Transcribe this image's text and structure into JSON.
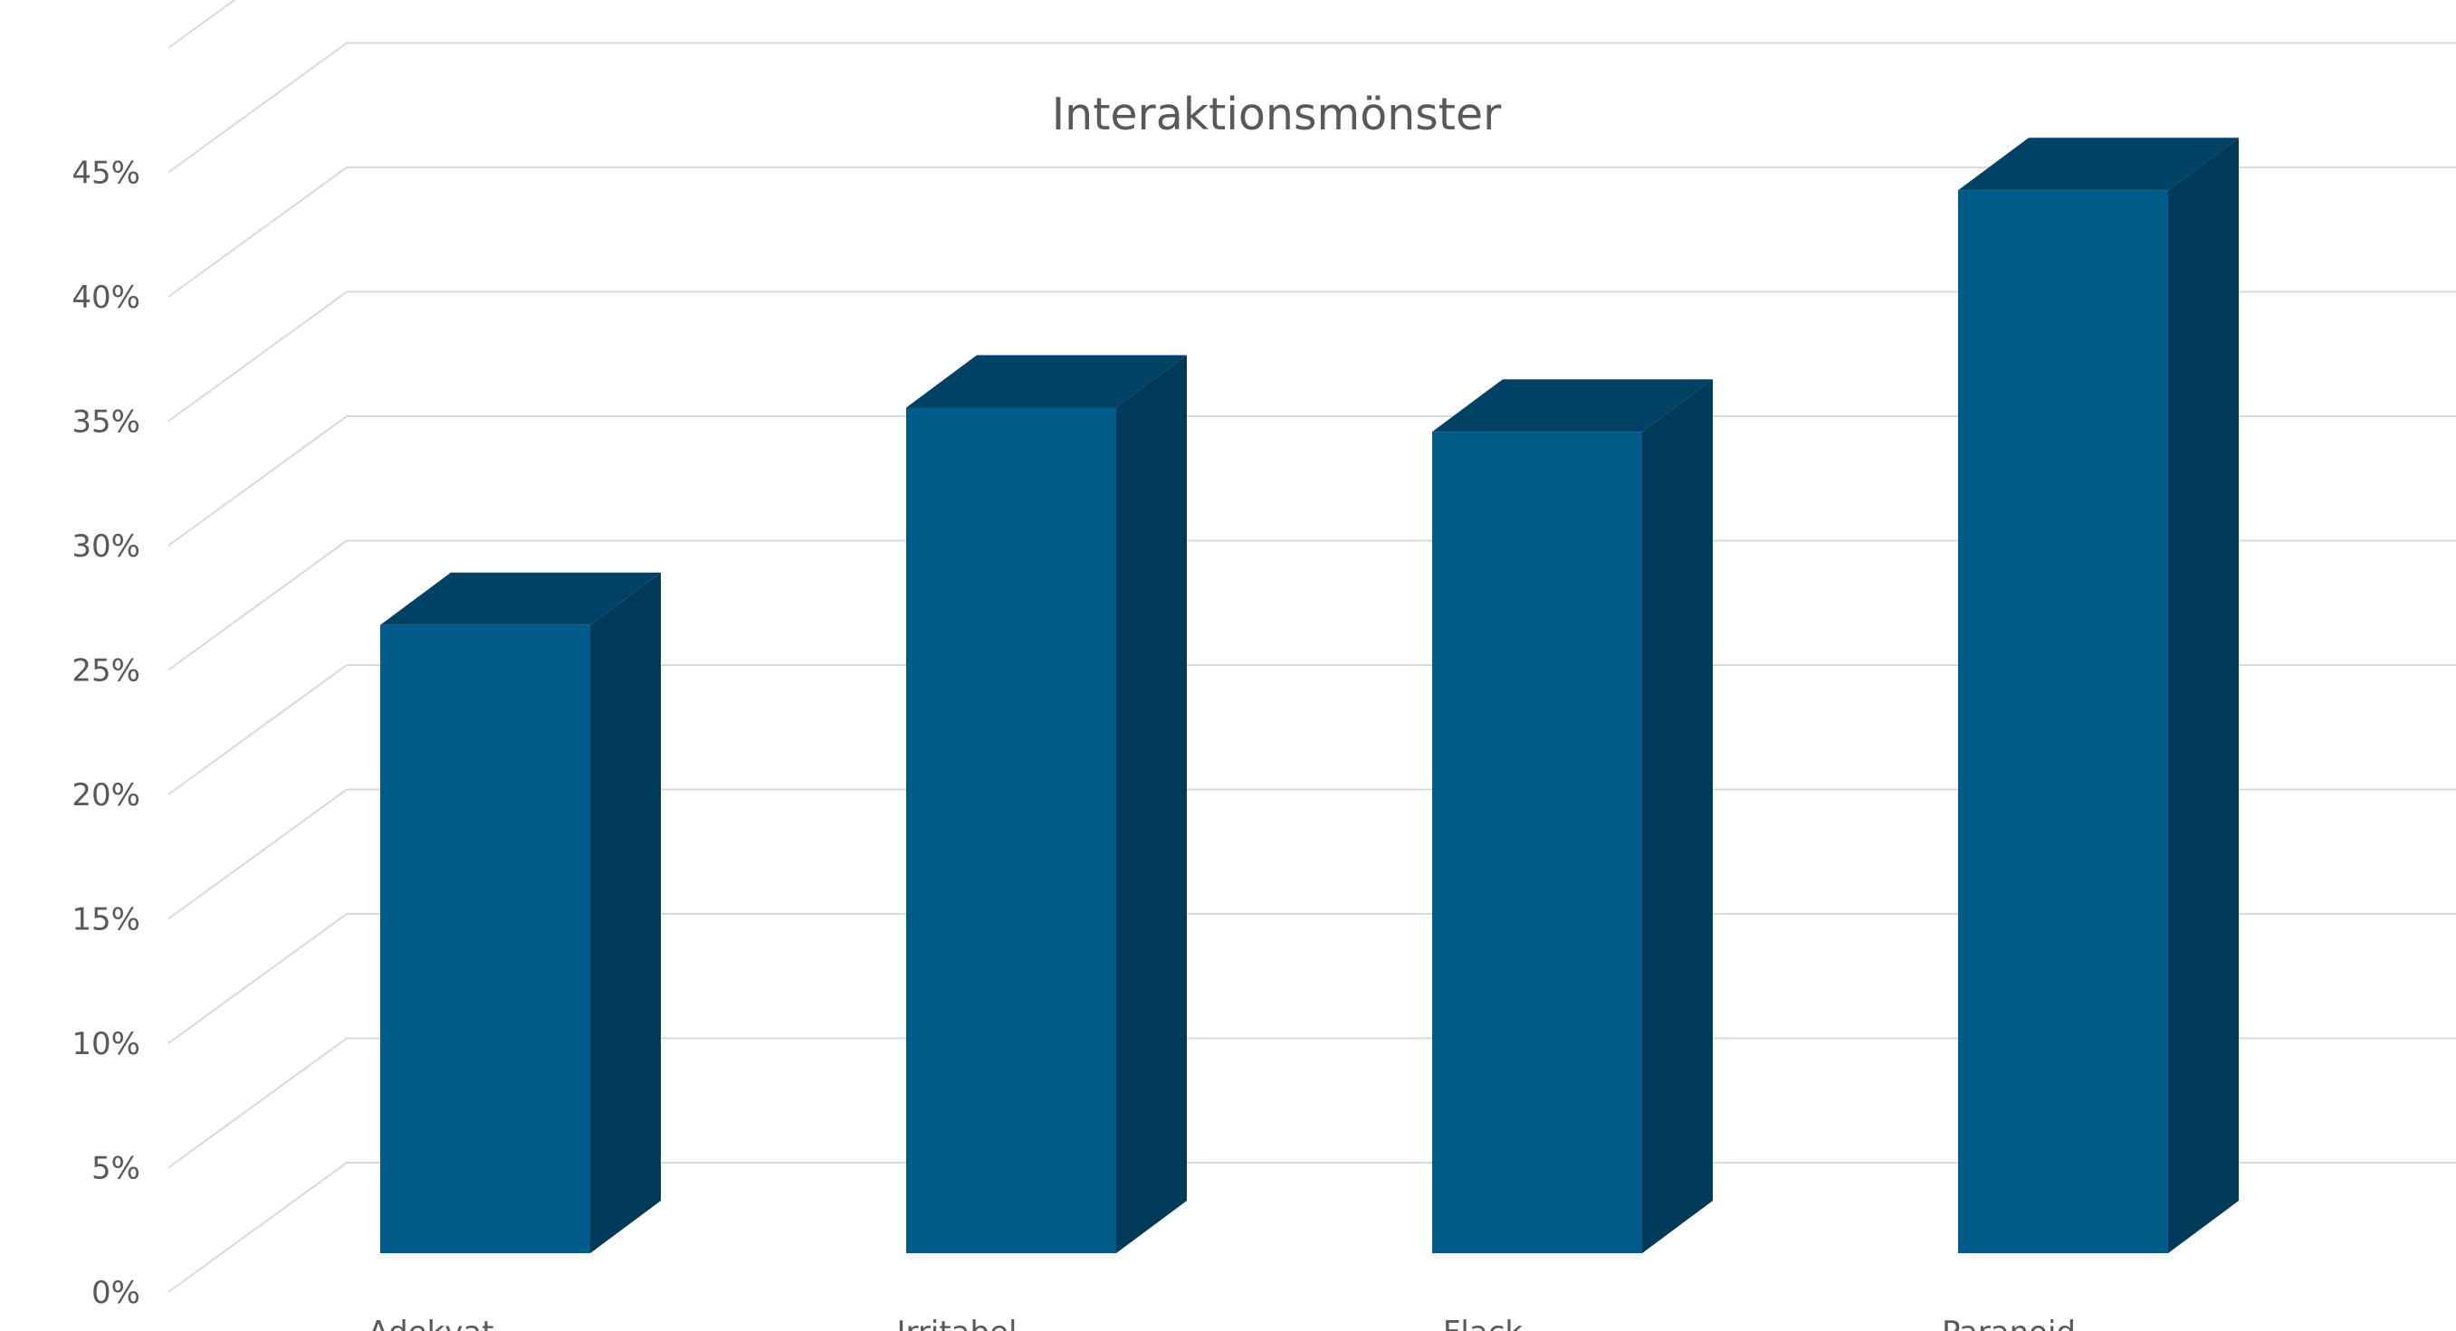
{
  "chart_data": {
    "type": "bar",
    "title": "Interaktionsmönster",
    "xlabel": "",
    "ylabel": "",
    "categories": [
      "Adekvat",
      "Irritabel",
      "Flack",
      "Paranoid"
    ],
    "values": [
      26,
      35,
      34,
      44
    ],
    "y_tick_labels": [
      "0%",
      "5%",
      "10%",
      "15%",
      "20%",
      "25%",
      "30%",
      "35%",
      "40%",
      "45%"
    ],
    "ylim": [
      0,
      45
    ],
    "y_unit": "%",
    "grid": true,
    "legend": "none",
    "style": "3d-column",
    "colors": {
      "bar_front": "#005B89",
      "bar_side": "#003A59",
      "bar_top": "#004266",
      "grid": "#d9d9d9",
      "text": "#595959"
    }
  }
}
